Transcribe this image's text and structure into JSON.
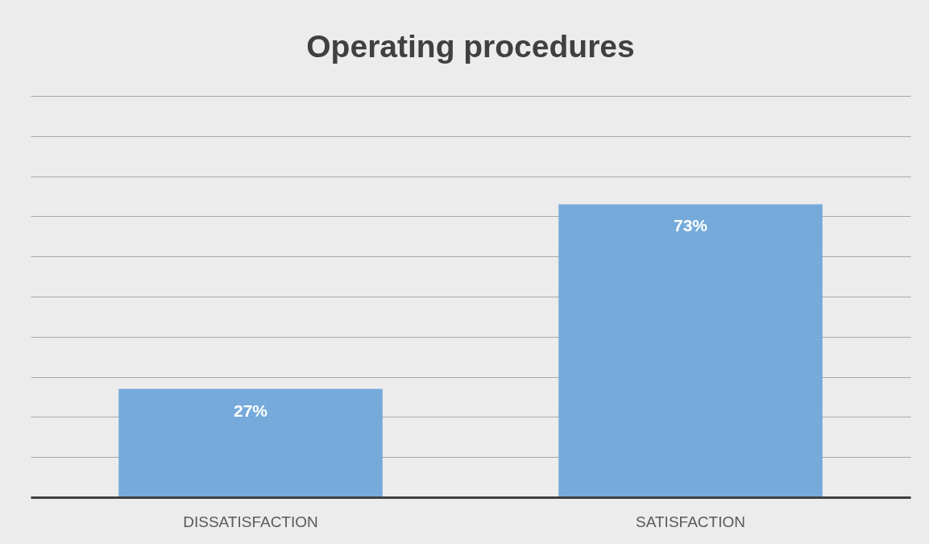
{
  "chart_data": {
    "type": "bar",
    "title": "Operating procedures",
    "categories": [
      "DISSATISFACTION",
      "SATISFACTION"
    ],
    "values": [
      27,
      73
    ],
    "value_labels": [
      "27%",
      "73%"
    ],
    "color": "#6fa7da",
    "ylim": [
      0,
      100
    ],
    "yticks": [
      0,
      10,
      20,
      30,
      40,
      50,
      60,
      70,
      80,
      90,
      100
    ],
    "grid": "y",
    "tick_labels": "x"
  }
}
